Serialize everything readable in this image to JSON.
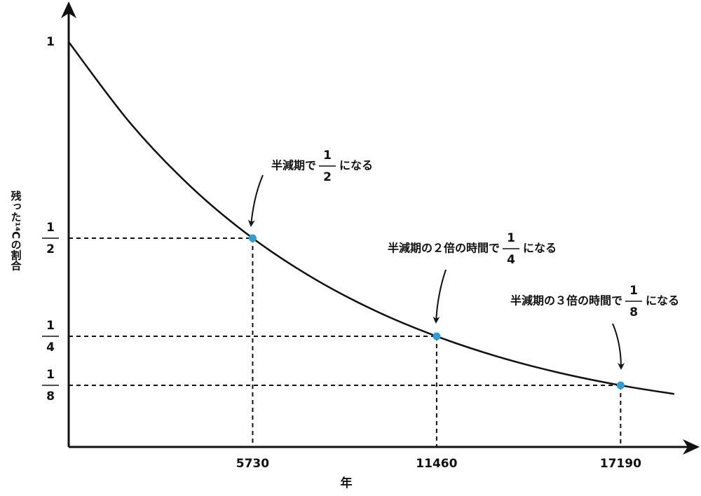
{
  "chart_data": {
    "type": "line",
    "ylabel": "残った¹⁴Cの割合",
    "xlabel": "年",
    "xlim": [
      0,
      19650
    ],
    "ylim": [
      -0.032,
      1.098
    ],
    "xticks": [
      5730,
      11460,
      17190
    ],
    "yticks": [
      1,
      {
        "value": 0.5,
        "label": "1/2"
      },
      {
        "value": 0.25,
        "label": "1/4"
      },
      {
        "value": 0.125,
        "label": "1/8"
      }
    ],
    "series": [
      {
        "name": "curve",
        "color": "#111111",
        "x": [
          0,
          1910,
          3820,
          5730,
          7640,
          9550,
          11460,
          13370,
          15280,
          17190,
          18860
        ],
        "values": [
          1,
          0.794,
          0.63,
          0.5,
          0.397,
          0.315,
          0.25,
          0.198,
          0.157,
          0.125,
          0.103
        ]
      },
      {
        "name": "points",
        "color": "#2b9fd9",
        "x": [
          5730,
          11460,
          17190
        ],
        "values": [
          0.5,
          0.25,
          0.125
        ]
      }
    ],
    "annotations": [
      {
        "before": "半減期で",
        "fraction": "1/2",
        "after": "になる"
      },
      {
        "before": "半減期の２倍の時間で",
        "fraction": "1/4",
        "after": "になる"
      },
      {
        "before": "半減期の３倍の時間で",
        "fraction": "1/8",
        "after": "になる"
      }
    ]
  }
}
